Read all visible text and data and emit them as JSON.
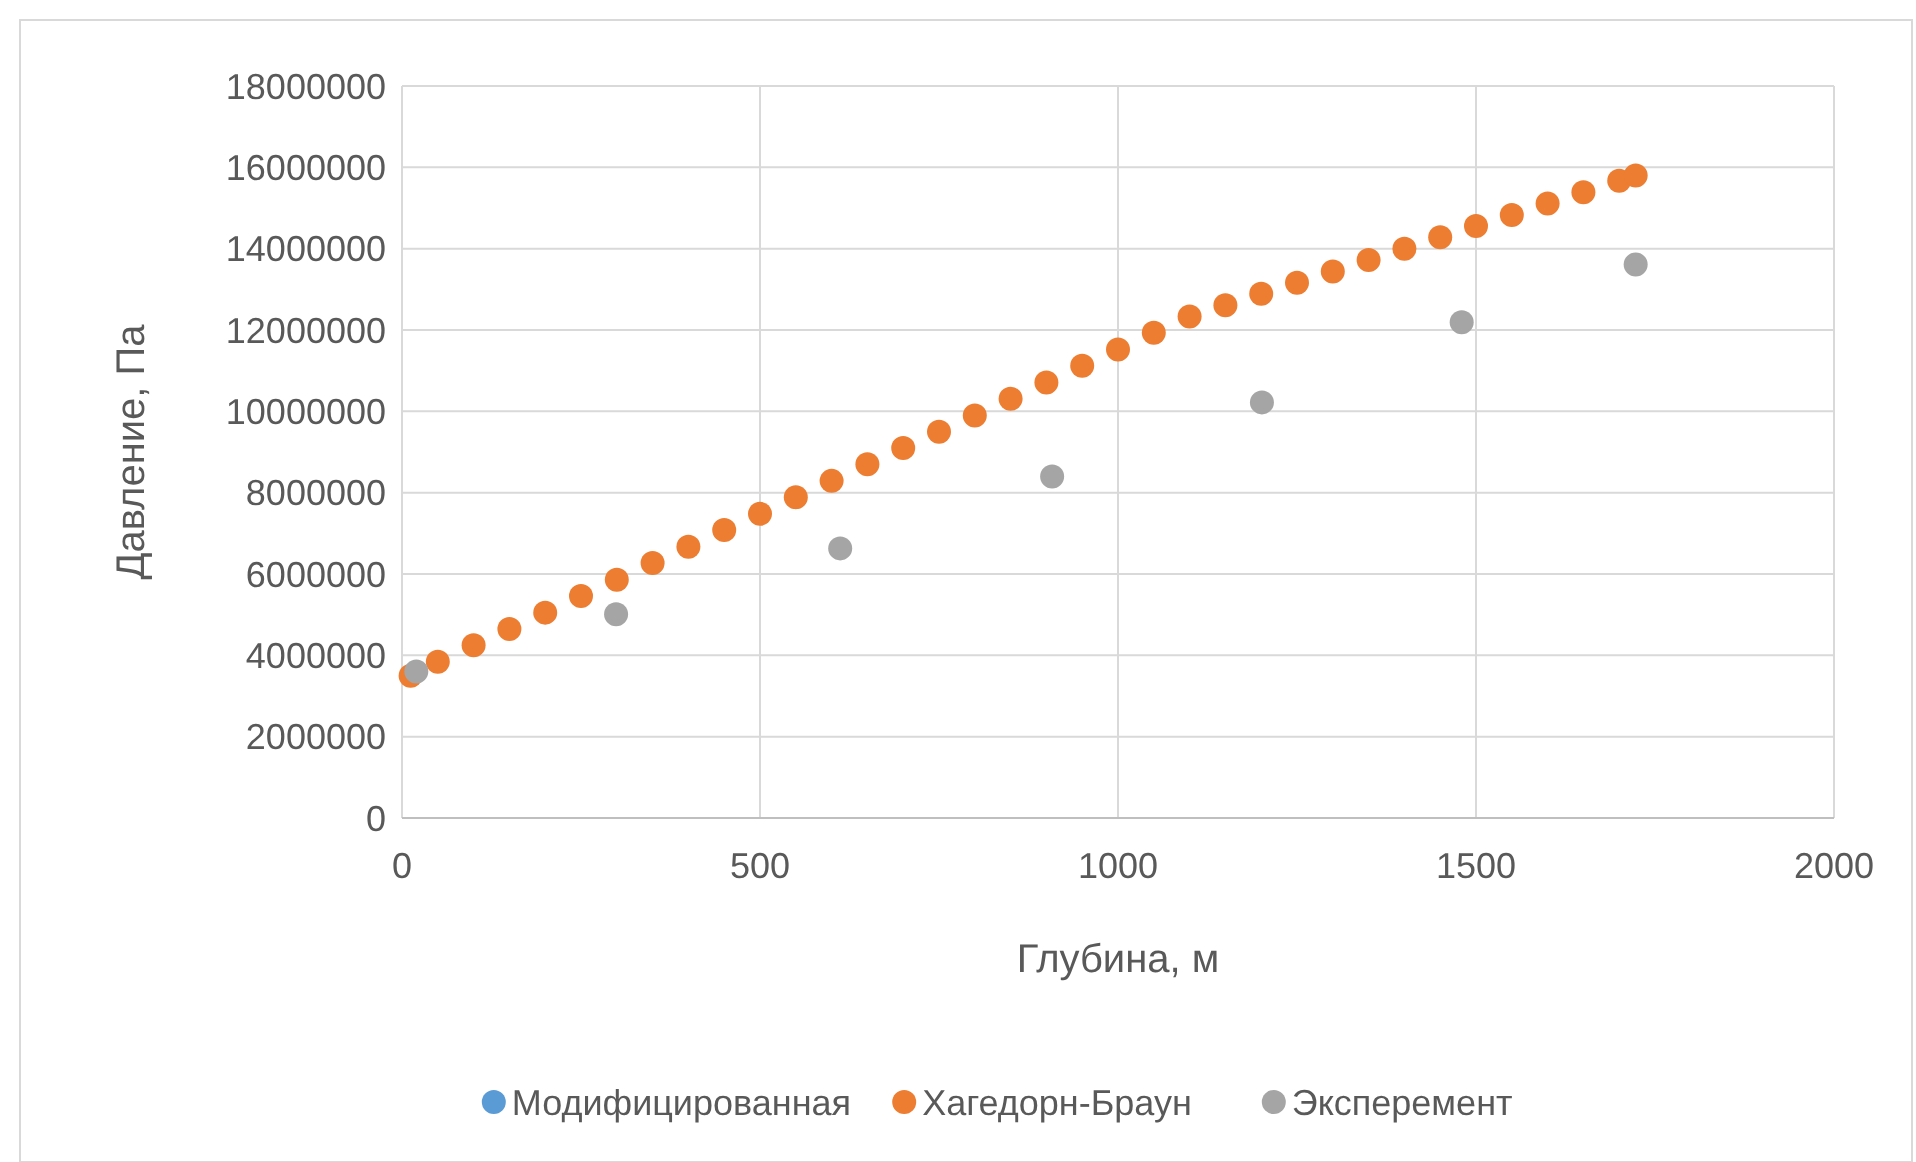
{
  "chart_data": {
    "type": "scatter",
    "xlabel": "Глубина, м",
    "ylabel": "Давление, Па",
    "xlim": [
      0,
      2000
    ],
    "xticks": [
      0,
      500,
      1000,
      1500,
      2000
    ],
    "ylim": [
      0,
      18000000
    ],
    "yticks": [
      0,
      2000000,
      4000000,
      6000000,
      8000000,
      10000000,
      12000000,
      14000000,
      16000000,
      18000000
    ],
    "grid": true,
    "legend": "bottom",
    "marker": "circle",
    "series": [
      {
        "name": "Модифицированная",
        "color": "#5b9bd5"
      },
      {
        "name": "Хагедорн-Браун",
        "color": "#ed7d31",
        "x": [
          12,
          50,
          100,
          150,
          200,
          250,
          300,
          350,
          400,
          450,
          500,
          550,
          600,
          650,
          700,
          750,
          800,
          850,
          900,
          950,
          1000,
          1050,
          1100,
          1150,
          1200,
          1250,
          1300,
          1350,
          1400,
          1450,
          1500,
          1550,
          1600,
          1650,
          1700,
          1723
        ],
        "values": [
          3500000,
          3840000,
          4250000,
          4650000,
          5050000,
          5460000,
          5860000,
          6270000,
          6670000,
          7080000,
          7480000,
          7890000,
          8290000,
          8700000,
          9100000,
          9500000,
          9900000,
          10310000,
          10710000,
          11120000,
          11520000,
          11930000,
          12330000,
          12610000,
          12890000,
          13160000,
          13440000,
          13720000,
          14000000,
          14280000,
          14560000,
          14830000,
          15110000,
          15390000,
          15670000,
          15800000
        ]
      },
      {
        "name": "Эксперемент",
        "color": "#a5a5a5",
        "x": [
          20,
          299,
          612,
          908,
          1201,
          1480,
          1723
        ],
        "values": [
          3600000,
          5010000,
          6630000,
          8400000,
          10220000,
          12190000,
          13610000
        ]
      }
    ]
  }
}
